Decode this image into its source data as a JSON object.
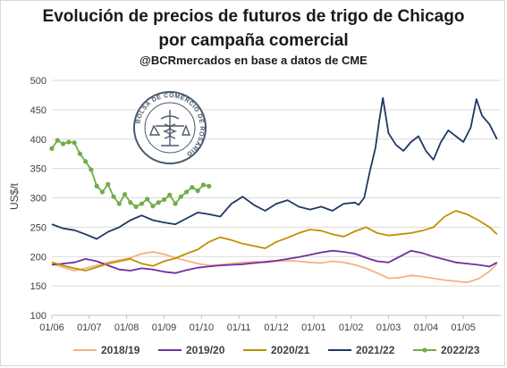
{
  "chart_data": {
    "type": "line",
    "title": "Evolución de precios de futuros de trigo de Chicago",
    "title_line2": "por campaña comercial",
    "subtitle": "@BCRmercados en base a datos de CME",
    "ylabel": "US$/t",
    "xlabel": "",
    "ylim": [
      100,
      500
    ],
    "yticks": [
      "100",
      "150",
      "200",
      "250",
      "300",
      "350",
      "400",
      "450",
      "500"
    ],
    "xticks": [
      "01/06",
      "01/07",
      "01/08",
      "01/09",
      "01/10",
      "01/11",
      "01/12",
      "01/01",
      "01/02",
      "01/03",
      "01/04",
      "01/05"
    ],
    "grid": true,
    "legend": "bottom",
    "logo_text": "BOLSA DE COMERCIO DE ROSARIO",
    "series": [
      {
        "name": "2018/19",
        "color": "#f4b183",
        "x": [
          0,
          0.3,
          0.6,
          0.9,
          1.2,
          1.5,
          1.8,
          2.1,
          2.4,
          2.7,
          3.0,
          3.3,
          3.6,
          3.9,
          4.2,
          4.5,
          4.8,
          5.1,
          5.4,
          5.7,
          6.0,
          6.3,
          6.6,
          6.9,
          7.2,
          7.5,
          7.8,
          8.1,
          8.4,
          8.7,
          9.0,
          9.3,
          9.6,
          9.9,
          10.2,
          10.5,
          10.8,
          11.1,
          11.4,
          11.7,
          11.9
        ],
        "y": [
          188,
          182,
          176,
          180,
          185,
          190,
          194,
          198,
          205,
          208,
          204,
          198,
          193,
          188,
          185,
          186,
          188,
          190,
          191,
          190,
          192,
          193,
          192,
          190,
          189,
          192,
          190,
          186,
          180,
          172,
          163,
          164,
          168,
          166,
          163,
          160,
          158,
          156,
          162,
          175,
          188
        ]
      },
      {
        "name": "2019/20",
        "color": "#7030a0",
        "x": [
          0,
          0.3,
          0.6,
          0.9,
          1.2,
          1.5,
          1.8,
          2.1,
          2.4,
          2.7,
          3.0,
          3.3,
          3.6,
          3.9,
          4.2,
          4.5,
          4.8,
          5.1,
          5.4,
          5.7,
          6.0,
          6.3,
          6.6,
          6.9,
          7.2,
          7.5,
          7.8,
          8.1,
          8.4,
          8.7,
          9.0,
          9.3,
          9.6,
          9.9,
          10.2,
          10.5,
          10.8,
          11.1,
          11.4,
          11.7,
          11.9
        ],
        "y": [
          186,
          188,
          190,
          196,
          192,
          185,
          178,
          176,
          180,
          178,
          174,
          172,
          177,
          181,
          183,
          185,
          186,
          187,
          189,
          191,
          193,
          196,
          199,
          203,
          207,
          210,
          208,
          205,
          198,
          192,
          190,
          200,
          210,
          206,
          200,
          195,
          190,
          188,
          186,
          183,
          190
        ]
      },
      {
        "name": "2020/21",
        "color": "#bf9000",
        "x": [
          0,
          0.3,
          0.6,
          0.9,
          1.2,
          1.5,
          1.8,
          2.1,
          2.4,
          2.7,
          3.0,
          3.3,
          3.6,
          3.9,
          4.2,
          4.5,
          4.8,
          5.1,
          5.4,
          5.7,
          6.0,
          6.3,
          6.6,
          6.9,
          7.2,
          7.5,
          7.8,
          8.1,
          8.4,
          8.7,
          9.0,
          9.3,
          9.6,
          9.9,
          10.2,
          10.5,
          10.8,
          11.1,
          11.4,
          11.7,
          11.9
        ],
        "y": [
          190,
          185,
          180,
          176,
          182,
          188,
          192,
          196,
          188,
          184,
          192,
          197,
          205,
          212,
          225,
          233,
          228,
          222,
          218,
          214,
          225,
          232,
          240,
          246,
          244,
          238,
          234,
          243,
          250,
          240,
          236,
          238,
          240,
          244,
          250,
          268,
          278,
          272,
          262,
          250,
          238
        ]
      },
      {
        "name": "2021/22",
        "color": "#1f3864",
        "x": [
          0,
          0.3,
          0.6,
          0.9,
          1.2,
          1.5,
          1.8,
          2.1,
          2.4,
          2.7,
          3.0,
          3.3,
          3.6,
          3.9,
          4.2,
          4.5,
          4.8,
          5.1,
          5.4,
          5.7,
          6.0,
          6.3,
          6.6,
          6.9,
          7.2,
          7.5,
          7.8,
          8.1,
          8.2,
          8.35,
          8.5,
          8.65,
          8.75,
          8.85,
          9.0,
          9.2,
          9.4,
          9.6,
          9.8,
          10.0,
          10.2,
          10.4,
          10.6,
          10.8,
          11.0,
          11.2,
          11.35,
          11.5,
          11.7,
          11.9
        ],
        "y": [
          255,
          248,
          245,
          238,
          230,
          242,
          250,
          262,
          270,
          262,
          258,
          255,
          265,
          275,
          272,
          268,
          290,
          302,
          288,
          278,
          290,
          296,
          285,
          280,
          285,
          278,
          290,
          292,
          288,
          300,
          345,
          385,
          430,
          470,
          410,
          390,
          380,
          395,
          405,
          380,
          365,
          395,
          415,
          405,
          395,
          420,
          468,
          440,
          425,
          400
        ]
      },
      {
        "name": "2022/23",
        "color": "#70ad47",
        "x": [
          0,
          0.15,
          0.3,
          0.45,
          0.6,
          0.75,
          0.9,
          1.05,
          1.2,
          1.35,
          1.5,
          1.65,
          1.8,
          1.95,
          2.1,
          2.25,
          2.4,
          2.55,
          2.7,
          2.85,
          3.0,
          3.15,
          3.3,
          3.45,
          3.6,
          3.75,
          3.9,
          4.05,
          4.2
        ],
        "y": [
          384,
          398,
          392,
          395,
          394,
          375,
          362,
          348,
          320,
          310,
          323,
          302,
          290,
          306,
          292,
          285,
          290,
          298,
          286,
          292,
          297,
          305,
          290,
          302,
          310,
          318,
          312,
          322,
          320
        ]
      }
    ]
  }
}
